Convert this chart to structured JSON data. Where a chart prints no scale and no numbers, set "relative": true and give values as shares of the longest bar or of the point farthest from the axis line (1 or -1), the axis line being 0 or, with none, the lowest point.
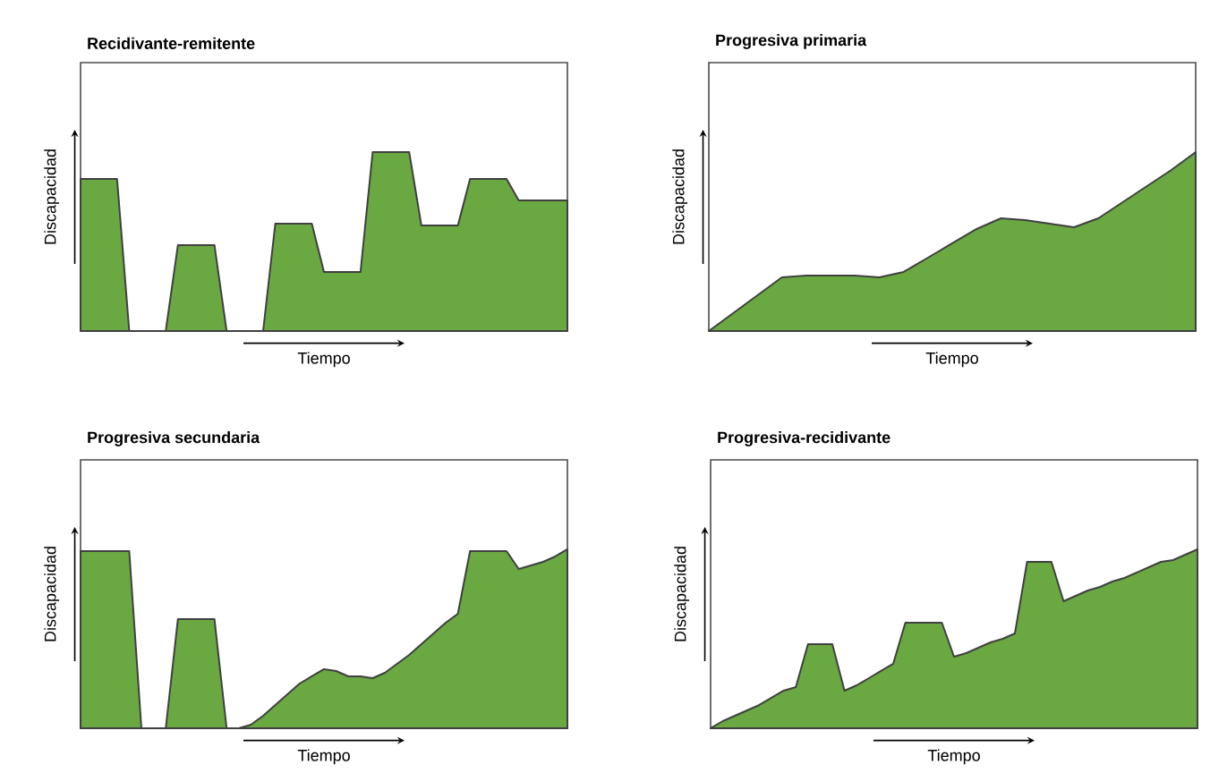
{
  "chart_data": [
    {
      "type": "area",
      "title": "Recidivante-remitente",
      "xlabel": "Tiempo",
      "ylabel": "Discapacidad",
      "relative": true,
      "color": "#6aa842",
      "categories": [
        null,
        null,
        null,
        null,
        null,
        null,
        null,
        null,
        null,
        null,
        null,
        null,
        null,
        null,
        null,
        null,
        null,
        null,
        null,
        null,
        null,
        null,
        null,
        null,
        null,
        null,
        null,
        null,
        null,
        null,
        null,
        null,
        null,
        null,
        null,
        null,
        null,
        null,
        null,
        null,
        null
      ],
      "values": [
        0.85,
        0.85,
        0.85,
        0.85,
        0,
        0,
        0,
        0,
        0.48,
        0.48,
        0.48,
        0.48,
        0,
        0,
        0,
        0,
        0.6,
        0.6,
        0.6,
        0.6,
        0.33,
        0.33,
        0.33,
        0.33,
        1,
        1,
        1,
        1,
        0.59,
        0.59,
        0.59,
        0.59,
        0.85,
        0.85,
        0.85,
        0.85,
        0.73,
        0.73,
        0.73,
        0.73,
        0.73
      ]
    },
    {
      "type": "area",
      "title": "Progresiva primaria",
      "xlabel": "Tiempo",
      "ylabel": "Discapacidad",
      "relative": true,
      "color": "#6aa842",
      "categories": [
        null,
        null,
        null,
        null,
        null,
        null,
        null,
        null,
        null,
        null,
        null,
        null,
        null,
        null,
        null,
        null,
        null,
        null,
        null,
        null,
        null
      ],
      "values": [
        0,
        0.1,
        0.2,
        0.3,
        0.31,
        0.31,
        0.31,
        0.3,
        0.33,
        0.41,
        0.49,
        0.57,
        0.63,
        0.62,
        0.6,
        0.58,
        0.63,
        0.72,
        0.81,
        0.9,
        1
      ]
    },
    {
      "type": "area",
      "title": "Progresiva secundaria",
      "xlabel": "Tiempo",
      "ylabel": "Discapacidad",
      "relative": true,
      "color": "#6aa842",
      "categories": [
        null,
        null,
        null,
        null,
        null,
        null,
        null,
        null,
        null,
        null,
        null,
        null,
        null,
        null,
        null,
        null,
        null,
        null,
        null,
        null,
        null,
        null,
        null,
        null,
        null,
        null,
        null,
        null,
        null,
        null,
        null,
        null,
        null,
        null,
        null,
        null,
        null,
        null,
        null,
        null,
        null
      ],
      "values": [
        0.99,
        0.99,
        0.99,
        0.99,
        0.99,
        0,
        0,
        0,
        0.61,
        0.61,
        0.61,
        0.61,
        0,
        0,
        0.02,
        0.07,
        0.13,
        0.19,
        0.25,
        0.29,
        0.33,
        0.32,
        0.29,
        0.29,
        0.28,
        0.31,
        0.36,
        0.41,
        0.47,
        0.53,
        0.59,
        0.64,
        0.99,
        0.99,
        0.99,
        0.99,
        0.89,
        0.91,
        0.93,
        0.96,
        1
      ]
    },
    {
      "type": "area",
      "title": "Progresiva-recidivante",
      "xlabel": "Tiempo",
      "ylabel": "Discapacidad",
      "relative": true,
      "color": "#6aa842",
      "categories": [
        null,
        null,
        null,
        null,
        null,
        null,
        null,
        null,
        null,
        null,
        null,
        null,
        null,
        null,
        null,
        null,
        null,
        null,
        null,
        null,
        null,
        null,
        null,
        null,
        null,
        null,
        null,
        null,
        null,
        null,
        null,
        null,
        null,
        null,
        null,
        null,
        null,
        null,
        null,
        null,
        null
      ],
      "values": [
        0,
        0.04,
        0.07,
        0.1,
        0.13,
        0.17,
        0.21,
        0.23,
        0.47,
        0.47,
        0.47,
        0.21,
        0.24,
        0.28,
        0.32,
        0.36,
        0.59,
        0.59,
        0.59,
        0.59,
        0.4,
        0.42,
        0.45,
        0.48,
        0.5,
        0.53,
        0.93,
        0.93,
        0.93,
        0.71,
        0.74,
        0.77,
        0.79,
        0.82,
        0.84,
        0.87,
        0.9,
        0.93,
        0.94,
        0.97,
        1
      ]
    }
  ]
}
